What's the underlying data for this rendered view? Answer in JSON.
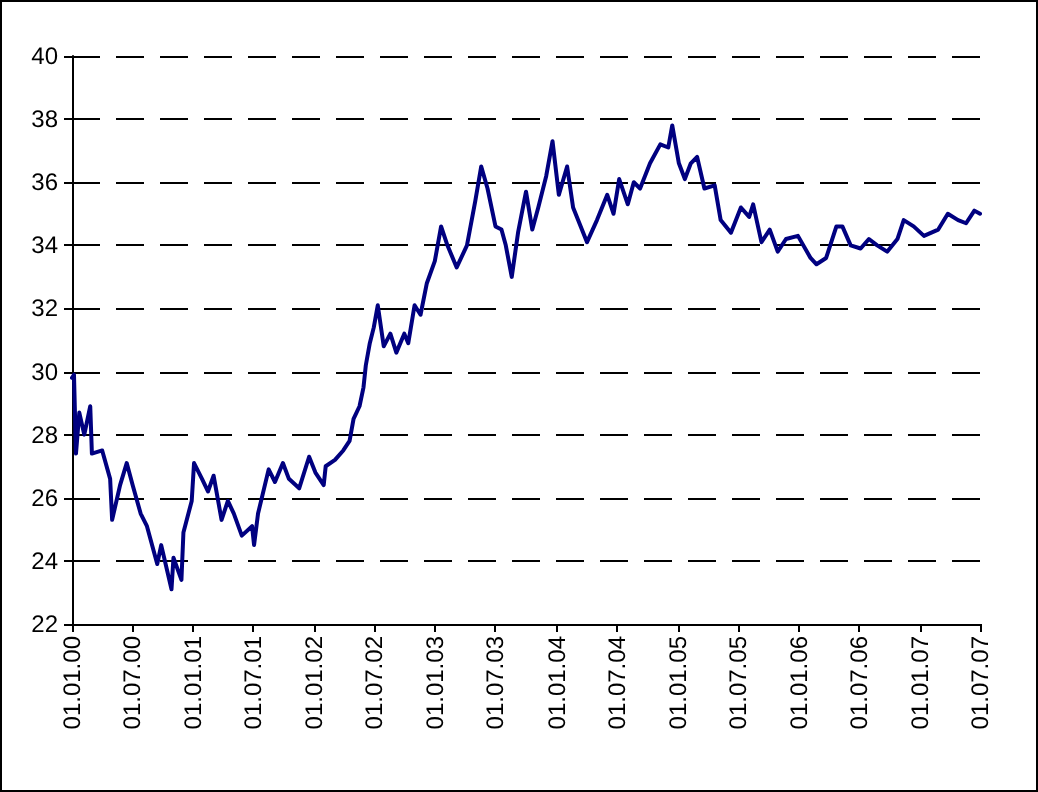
{
  "chart_data": {
    "type": "line",
    "x": [
      "2000-01-01",
      "2000-01-07",
      "2000-01-13",
      "2000-01-23",
      "2000-02-07",
      "2000-02-25",
      "2000-03-01",
      "2000-04-01",
      "2000-04-25",
      "2000-05-01",
      "2000-05-25",
      "2000-06-14",
      "2000-07-02",
      "2000-07-26",
      "2000-08-14",
      "2000-09-14",
      "2000-09-26",
      "2000-10-27",
      "2000-11-02",
      "2000-11-26",
      "2000-12-02",
      "2000-12-27",
      "2001-01-03",
      "2001-01-27",
      "2001-02-14",
      "2001-03-03",
      "2001-03-27",
      "2001-04-15",
      "2001-05-03",
      "2001-05-27",
      "2001-06-27",
      "2001-07-03",
      "2001-07-15",
      "2001-08-16",
      "2001-09-04",
      "2001-09-28",
      "2001-10-16",
      "2001-11-16",
      "2001-12-16",
      "2002-01-04",
      "2002-01-29",
      "2002-02-04",
      "2002-03-04",
      "2002-03-29",
      "2002-04-17",
      "2002-04-29",
      "2002-05-17",
      "2002-05-29",
      "2002-06-05",
      "2002-06-17",
      "2002-06-29",
      "2002-07-11",
      "2002-07-29",
      "2002-08-18",
      "2002-09-05",
      "2002-09-29",
      "2002-10-11",
      "2002-10-30",
      "2002-11-17",
      "2002-12-06",
      "2002-12-30",
      "2003-01-18",
      "2003-02-06",
      "2003-03-06",
      "2003-04-06",
      "2003-05-01",
      "2003-05-19",
      "2003-06-07",
      "2003-07-01",
      "2003-07-19",
      "2003-08-01",
      "2003-08-19",
      "2003-09-07",
      "2003-10-01",
      "2003-10-20",
      "2003-11-07",
      "2003-12-01",
      "2003-12-20",
      "2004-01-08",
      "2004-02-02",
      "2004-02-20",
      "2004-04-02",
      "2004-05-02",
      "2004-06-02",
      "2004-06-21",
      "2004-07-08",
      "2004-08-03",
      "2004-08-21",
      "2004-09-09",
      "2004-10-09",
      "2004-11-09",
      "2004-12-03",
      "2004-12-15",
      "2005-01-04",
      "2005-01-22",
      "2005-02-09",
      "2005-02-28",
      "2005-03-22",
      "2005-04-22",
      "2005-05-10",
      "2005-06-10",
      "2005-07-10",
      "2005-08-04",
      "2005-08-16",
      "2005-09-10",
      "2005-10-05",
      "2005-10-29",
      "2005-11-23",
      "2005-12-29",
      "2006-02-05",
      "2006-02-23",
      "2006-03-24",
      "2006-04-24",
      "2006-05-12",
      "2006-06-06",
      "2006-07-06",
      "2006-07-31",
      "2006-08-25",
      "2006-09-24",
      "2006-10-25",
      "2006-11-13",
      "2006-12-13",
      "2007-01-13",
      "2007-02-25",
      "2007-03-26",
      "2007-04-26",
      "2007-05-20",
      "2007-06-14",
      "2007-07-01"
    ],
    "series": [
      {
        "color": "#000080",
        "values": [
          29.8,
          29.9,
          27.4,
          28.7,
          28.0,
          28.9,
          27.4,
          27.5,
          26.6,
          25.3,
          26.4,
          27.1,
          26.4,
          25.5,
          25.1,
          23.9,
          24.5,
          23.1,
          24.1,
          23.4,
          24.9,
          25.9,
          27.1,
          26.6,
          26.2,
          26.7,
          25.3,
          25.9,
          25.5,
          24.8,
          25.1,
          24.5,
          25.5,
          26.9,
          26.5,
          27.1,
          26.6,
          26.3,
          27.3,
          26.8,
          26.4,
          27.0,
          27.2,
          27.5,
          27.8,
          28.5,
          28.9,
          29.5,
          30.2,
          30.9,
          31.4,
          32.1,
          30.8,
          31.2,
          30.6,
          31.2,
          30.9,
          32.1,
          31.8,
          32.8,
          33.5,
          34.6,
          34.0,
          33.3,
          34.0,
          35.4,
          36.5,
          35.8,
          34.6,
          34.5,
          34.0,
          33.0,
          34.4,
          35.7,
          34.5,
          35.2,
          36.2,
          37.3,
          35.6,
          36.5,
          35.2,
          34.1,
          34.8,
          35.6,
          35.0,
          36.1,
          35.3,
          36.0,
          35.8,
          36.6,
          37.2,
          37.1,
          37.8,
          36.6,
          36.1,
          36.6,
          36.8,
          35.8,
          35.9,
          34.8,
          34.4,
          35.2,
          34.9,
          35.3,
          34.1,
          34.5,
          33.8,
          34.2,
          34.3,
          33.6,
          33.4,
          33.6,
          34.6,
          34.6,
          34.0,
          33.9,
          34.2,
          34.0,
          33.8,
          34.2,
          34.8,
          34.6,
          34.3,
          34.5,
          35.0,
          34.8,
          34.7,
          35.1,
          35.0
        ]
      }
    ],
    "xlim": [
      "2000-01-01",
      "2007-07-01"
    ],
    "xticks": [
      {
        "value": "2000-01-01",
        "label": "01.01.00"
      },
      {
        "value": "2000-07-01",
        "label": "01.07.00"
      },
      {
        "value": "2001-01-01",
        "label": "01.01.01"
      },
      {
        "value": "2001-07-01",
        "label": "01.07.01"
      },
      {
        "value": "2002-01-01",
        "label": "01.01.02"
      },
      {
        "value": "2002-07-01",
        "label": "01.07.02"
      },
      {
        "value": "2003-01-01",
        "label": "01.01.03"
      },
      {
        "value": "2003-07-01",
        "label": "01.07.03"
      },
      {
        "value": "2004-01-01",
        "label": "01.01.04"
      },
      {
        "value": "2004-07-01",
        "label": "01.07.04"
      },
      {
        "value": "2005-01-01",
        "label": "01.01.05"
      },
      {
        "value": "2005-07-01",
        "label": "01.07.05"
      },
      {
        "value": "2006-01-01",
        "label": "01.01.06"
      },
      {
        "value": "2006-07-01",
        "label": "01.07.06"
      },
      {
        "value": "2007-01-01",
        "label": "01.01.07"
      },
      {
        "value": "2007-07-01",
        "label": "01.07.07"
      }
    ],
    "ylim": [
      22,
      40
    ],
    "yticks": [
      22,
      24,
      26,
      28,
      30,
      32,
      34,
      36,
      38,
      40
    ],
    "grid": "y",
    "line_style": "solid",
    "marker": "none"
  }
}
